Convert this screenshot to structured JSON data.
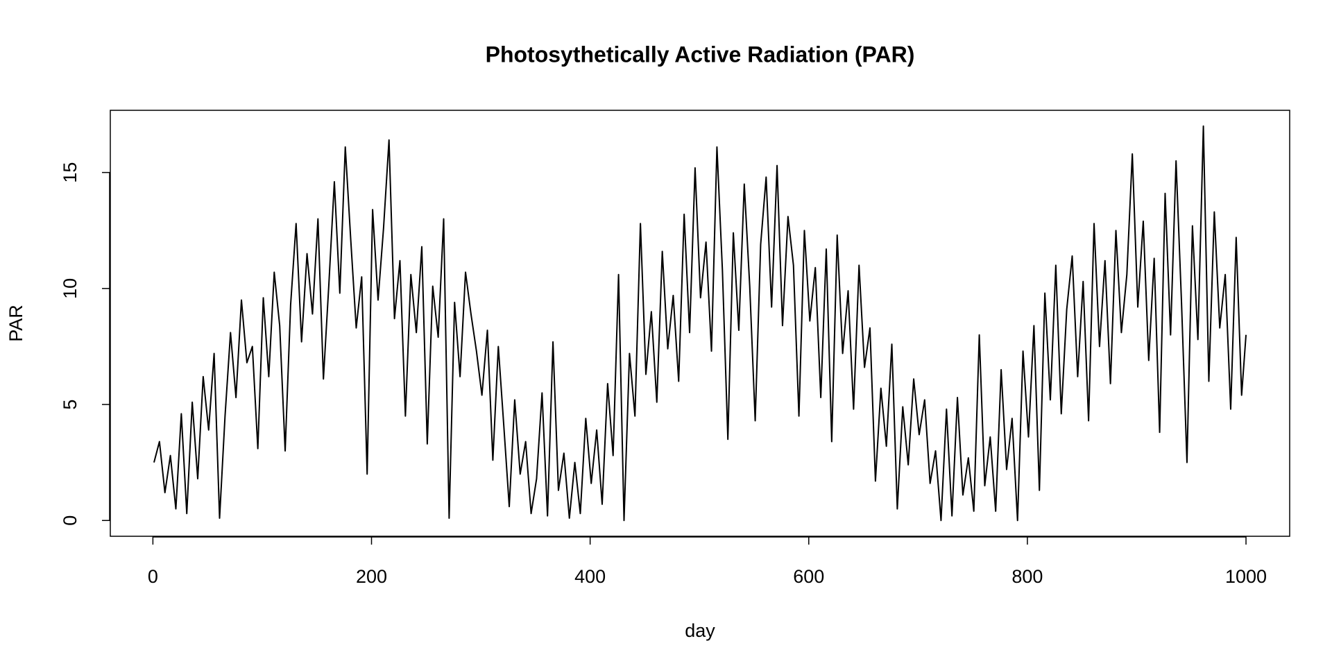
{
  "chart_data": {
    "type": "line",
    "title": "Photosythetically Active Radiation (PAR)",
    "x_label": "day",
    "y_label": "PAR",
    "x": [
      1,
      6,
      11,
      16,
      21,
      26,
      31,
      36,
      41,
      46,
      51,
      56,
      61,
      66,
      71,
      76,
      81,
      86,
      91,
      96,
      101,
      106,
      111,
      116,
      121,
      126,
      131,
      136,
      141,
      146,
      151,
      156,
      161,
      166,
      171,
      176,
      181,
      186,
      191,
      196,
      201,
      206,
      211,
      216,
      221,
      226,
      231,
      236,
      241,
      246,
      251,
      256,
      261,
      266,
      271,
      276,
      281,
      286,
      291,
      296,
      301,
      306,
      311,
      316,
      321,
      326,
      331,
      336,
      341,
      346,
      351,
      356,
      361,
      366,
      371,
      376,
      381,
      386,
      391,
      396,
      401,
      406,
      411,
      416,
      421,
      426,
      431,
      436,
      441,
      446,
      451,
      456,
      461,
      466,
      471,
      476,
      481,
      486,
      491,
      496,
      501,
      506,
      511,
      516,
      521,
      526,
      531,
      536,
      541,
      546,
      551,
      556,
      561,
      566,
      571,
      576,
      581,
      586,
      591,
      596,
      601,
      606,
      611,
      616,
      621,
      626,
      631,
      636,
      641,
      646,
      651,
      656,
      661,
      666,
      671,
      676,
      681,
      686,
      691,
      696,
      701,
      706,
      711,
      716,
      721,
      726,
      731,
      736,
      741,
      746,
      751,
      756,
      761,
      766,
      771,
      776,
      781,
      786,
      791,
      796,
      801,
      806,
      811,
      816,
      821,
      826,
      831,
      836,
      841,
      846,
      851,
      856,
      861,
      866,
      871,
      876,
      881,
      886,
      891,
      896,
      901,
      906,
      911,
      916,
      921,
      926,
      931,
      936,
      941,
      946,
      951,
      956,
      961,
      966,
      971,
      976,
      981,
      986,
      991,
      996,
      1000
    ],
    "series": [
      {
        "name": "PAR",
        "color": "#000000",
        "values": [
          2.5,
          3.4,
          1.2,
          2.8,
          0.5,
          4.6,
          0.3,
          5.1,
          1.8,
          6.2,
          3.9,
          7.2,
          0.1,
          4.5,
          8.1,
          5.3,
          9.5,
          6.8,
          7.5,
          3.1,
          9.6,
          6.2,
          10.7,
          8.4,
          3.0,
          9.3,
          12.8,
          7.7,
          11.5,
          8.9,
          13.0,
          6.1,
          10.2,
          14.6,
          9.8,
          16.1,
          12.1,
          8.3,
          10.5,
          2.0,
          13.4,
          9.5,
          12.6,
          16.4,
          8.7,
          11.2,
          4.5,
          10.6,
          8.1,
          11.8,
          3.3,
          10.1,
          7.9,
          13.0,
          0.1,
          9.4,
          6.2,
          10.7,
          8.9,
          7.3,
          5.4,
          8.2,
          2.6,
          7.5,
          4.1,
          0.6,
          5.2,
          2.0,
          3.4,
          0.3,
          1.8,
          5.5,
          0.2,
          7.7,
          1.3,
          2.9,
          0.1,
          2.5,
          0.3,
          4.4,
          1.6,
          3.9,
          0.7,
          5.9,
          2.8,
          10.6,
          0.0,
          7.2,
          4.5,
          12.8,
          6.3,
          9.0,
          5.1,
          11.6,
          7.4,
          9.7,
          6.0,
          13.2,
          8.1,
          15.2,
          9.6,
          12.0,
          7.3,
          16.1,
          10.8,
          3.5,
          12.4,
          8.2,
          14.5,
          10.1,
          4.3,
          11.9,
          14.8,
          9.2,
          15.3,
          8.4,
          13.1,
          11.0,
          4.5,
          12.5,
          8.6,
          10.9,
          5.3,
          11.7,
          3.4,
          12.3,
          7.2,
          9.9,
          4.8,
          11.0,
          6.6,
          8.3,
          1.7,
          5.7,
          3.2,
          7.6,
          0.5,
          4.9,
          2.4,
          6.1,
          3.7,
          5.2,
          1.6,
          3.0,
          0.0,
          4.8,
          0.2,
          5.3,
          1.1,
          2.7,
          0.4,
          8.0,
          1.5,
          3.6,
          0.4,
          6.5,
          2.2,
          4.4,
          0.0,
          7.3,
          3.6,
          8.4,
          1.3,
          9.8,
          5.2,
          11.0,
          4.6,
          9.1,
          11.4,
          6.2,
          10.3,
          4.3,
          12.8,
          7.5,
          11.2,
          5.9,
          12.5,
          8.1,
          10.6,
          15.8,
          9.2,
          12.9,
          6.9,
          11.3,
          3.8,
          14.1,
          8.0,
          15.5,
          9.4,
          2.5,
          12.7,
          7.8,
          17.0,
          6.0,
          13.3,
          8.3,
          10.6,
          4.8,
          12.2,
          5.4,
          8.0
        ]
      }
    ],
    "xlim": [
      -38.96,
      1039.96
    ],
    "ylim": [
      -0.68,
      17.68
    ],
    "xticks": [
      0,
      200,
      400,
      600,
      800,
      1000
    ],
    "yticks": [
      0,
      5,
      10,
      15
    ],
    "grid": false
  }
}
